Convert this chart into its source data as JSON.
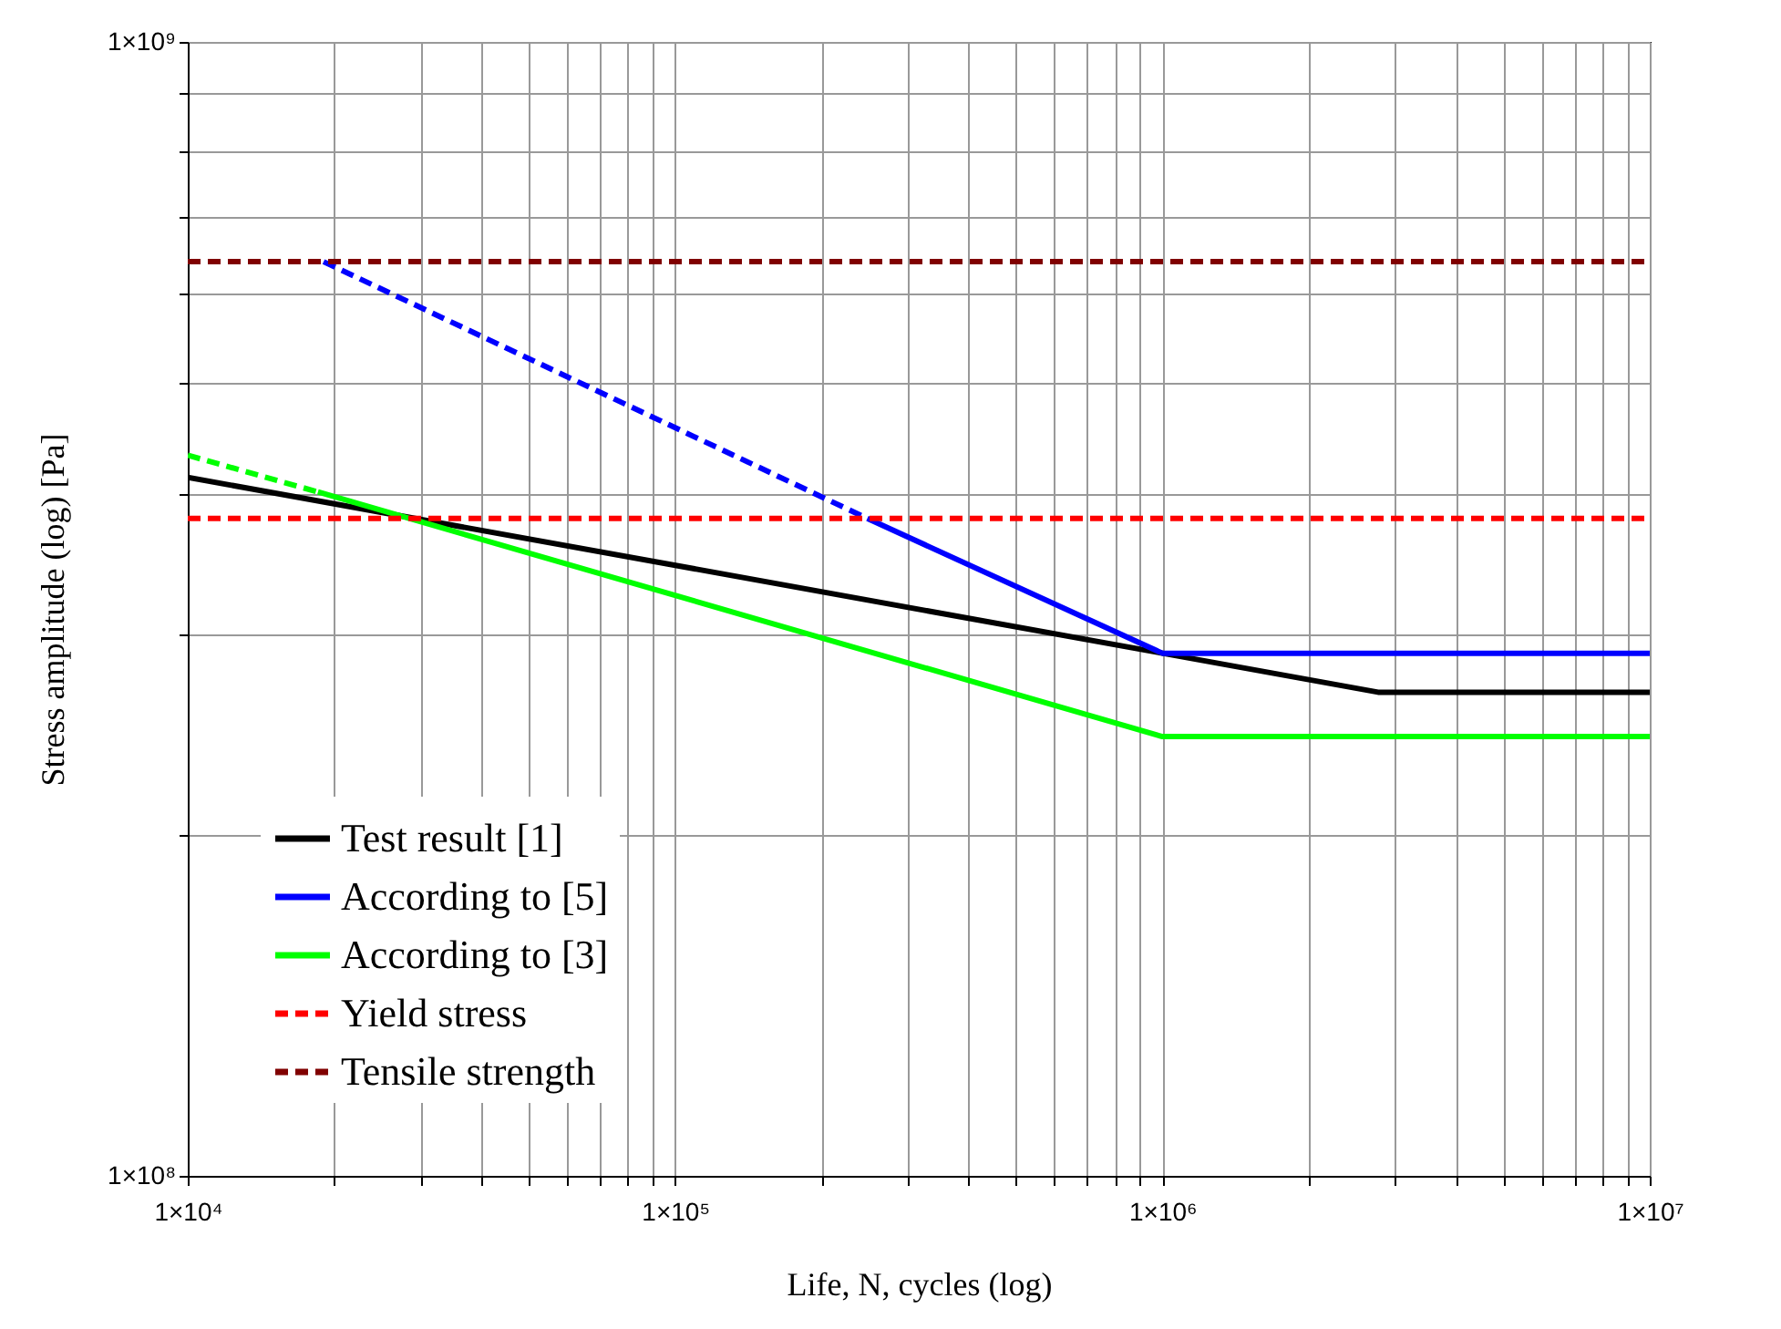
{
  "chart_data": {
    "type": "line",
    "xlabel": "Life, N, cycles (log)",
    "ylabel": "Stress amplitude (log) [Pa]",
    "log": "xy",
    "grid": true,
    "legend": "bottom left",
    "line_style": "solid",
    "marker": "none",
    "xlim": [
      10000,
      10000000
    ],
    "ylim": [
      100000000,
      1000000000
    ],
    "xticks": [
      {
        "value": 10000,
        "label": "1×10⁴"
      },
      {
        "value": 20000,
        "label": null
      },
      {
        "value": 30000,
        "label": null
      },
      {
        "value": 40000,
        "label": null
      },
      {
        "value": 50000,
        "label": null
      },
      {
        "value": 60000,
        "label": null
      },
      {
        "value": 70000,
        "label": null
      },
      {
        "value": 80000,
        "label": null
      },
      {
        "value": 90000,
        "label": null
      },
      {
        "value": 100000,
        "label": "1×10⁵"
      },
      {
        "value": 200000,
        "label": null
      },
      {
        "value": 300000,
        "label": null
      },
      {
        "value": 400000,
        "label": null
      },
      {
        "value": 500000,
        "label": null
      },
      {
        "value": 600000,
        "label": null
      },
      {
        "value": 700000,
        "label": null
      },
      {
        "value": 800000,
        "label": null
      },
      {
        "value": 900000,
        "label": null
      },
      {
        "value": 1000000,
        "label": "1×10⁶"
      },
      {
        "value": 2000000,
        "label": null
      },
      {
        "value": 3000000,
        "label": null
      },
      {
        "value": 4000000,
        "label": null
      },
      {
        "value": 5000000,
        "label": null
      },
      {
        "value": 6000000,
        "label": null
      },
      {
        "value": 7000000,
        "label": null
      },
      {
        "value": 8000000,
        "label": null
      },
      {
        "value": 9000000,
        "label": null
      },
      {
        "value": 10000000,
        "label": "1×10⁷"
      }
    ],
    "yticks": [
      {
        "value": 100000000,
        "label": "1×10⁸"
      },
      {
        "value": 200000000,
        "label": null
      },
      {
        "value": 300000000,
        "label": null
      },
      {
        "value": 400000000,
        "label": null
      },
      {
        "value": 500000000,
        "label": null
      },
      {
        "value": 600000000,
        "label": null
      },
      {
        "value": 700000000,
        "label": null
      },
      {
        "value": 800000000,
        "label": null
      },
      {
        "value": 900000000,
        "label": null
      },
      {
        "value": 1000000000,
        "label": "1×10⁹"
      }
    ],
    "series": [
      {
        "name": "Test result [1]",
        "color": "#000000",
        "x": [
          10000,
          1000000,
          2770000,
          10000000
        ],
        "values": [
          413000000,
          289000000,
          267000000,
          267000000
        ]
      },
      {
        "name": "According to [5]",
        "color": "#0000ff",
        "x": [
          248000,
          1000000,
          10000000
        ],
        "values": [
          380000000,
          289000000,
          289000000
        ]
      },
      {
        "color": "#0000ff",
        "line_style": "dashed",
        "x": [
          19000,
          248000
        ],
        "values": [
          640000000,
          380000000
        ]
      },
      {
        "name": "According to [3]",
        "color": "#00ff00",
        "x": [
          18500,
          1000000,
          10000000
        ],
        "values": [
          401000000,
          244000000,
          244000000
        ]
      },
      {
        "color": "#00ff00",
        "line_style": "dashed",
        "x": [
          10000,
          18500
        ],
        "values": [
          432000000,
          401000000
        ]
      },
      {
        "name": "Yield stress",
        "color": "#ff0000",
        "line_style": "dashed",
        "x": [
          10000,
          10000000
        ],
        "values": [
          380000000,
          380000000
        ]
      },
      {
        "name": "Tensile strength",
        "color": "#800000",
        "line_style": "dashed",
        "x": [
          10000,
          10000000
        ],
        "values": [
          640000000,
          640000000
        ]
      }
    ]
  }
}
